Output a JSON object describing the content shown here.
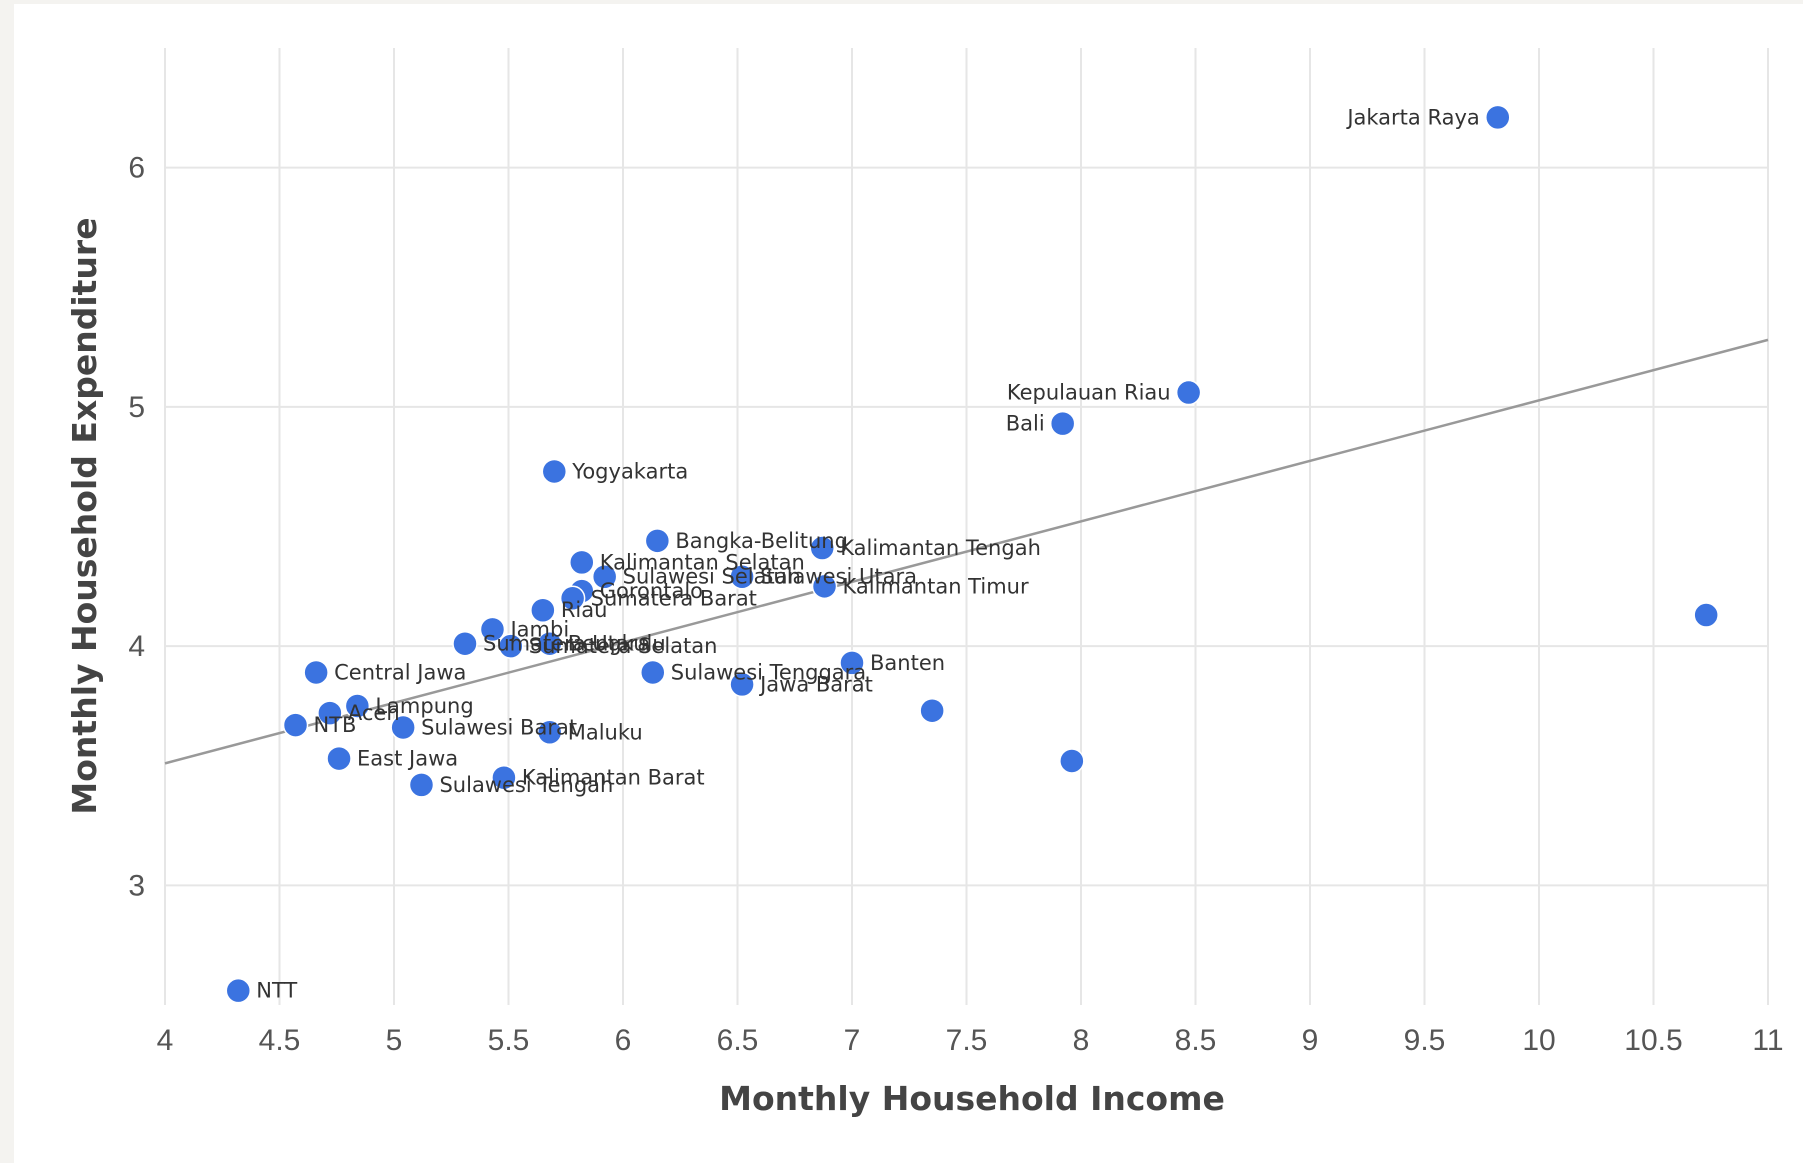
{
  "chart_data": {
    "type": "scatter",
    "title": "",
    "xlabel": "Monthly Household Income",
    "ylabel": "Monthly Household Expenditure",
    "xlim": [
      4,
      11
    ],
    "ylim": [
      2.5,
      6.5
    ],
    "x_ticks": [
      4,
      4.5,
      5,
      5.5,
      6,
      6.5,
      7,
      7.5,
      8,
      8.5,
      9,
      9.5,
      10,
      10.5,
      11
    ],
    "x_tick_labels": [
      "4",
      "4.5",
      "5",
      "5.5",
      "6",
      "6.5",
      "7",
      "7.5",
      "8",
      "8.5",
      "9",
      "9.5",
      "10",
      "10.5",
      "11"
    ],
    "y_ticks": [
      3,
      4,
      5,
      6
    ],
    "y_tick_labels": [
      "3",
      "4",
      "5",
      "6"
    ],
    "grid": true,
    "point_color": "#3b73e0",
    "trendline_color": "#999999",
    "trendline": {
      "x": [
        4,
        11
      ],
      "y": [
        3.51,
        5.28
      ]
    },
    "points": [
      {
        "label": "Jakarta Raya",
        "x": 9.82,
        "y": 6.21
      },
      {
        "label": "Kepulauan Riau",
        "x": 8.47,
        "y": 5.06
      },
      {
        "label": "Bali",
        "x": 7.92,
        "y": 4.93
      },
      {
        "label": "Yogyakarta",
        "x": 5.7,
        "y": 4.73
      },
      {
        "label": "Bangka-Belitung",
        "x": 6.15,
        "y": 4.44
      },
      {
        "label": "Kalimantan Tengah",
        "x": 6.87,
        "y": 4.41
      },
      {
        "label": "Kalimantan Selatan",
        "x": 5.82,
        "y": 4.35
      },
      {
        "label": "Sulawesi Selatan",
        "x": 5.92,
        "y": 4.29
      },
      {
        "label": "Sulawesi Utara",
        "x": 6.52,
        "y": 4.29
      },
      {
        "label": "Kalimantan Timur",
        "x": 6.88,
        "y": 4.25
      },
      {
        "label": "Gorontalo",
        "x": 5.82,
        "y": 4.23
      },
      {
        "label": "Sumatera Barat",
        "x": 5.78,
        "y": 4.2
      },
      {
        "label": "Riau",
        "x": 5.65,
        "y": 4.15
      },
      {
        "label": "Jambi",
        "x": 5.43,
        "y": 4.07
      },
      {
        "label": "Sumatera Utara",
        "x": 5.31,
        "y": 4.01
      },
      {
        "label": "Sumatera Selatan",
        "x": 5.51,
        "y": 4.0
      },
      {
        "label": "Bengkulu",
        "x": 5.68,
        "y": 4.01
      },
      {
        "label": "Banten",
        "x": 7.0,
        "y": 3.93
      },
      {
        "label": "Sulawesi Tenggara",
        "x": 6.13,
        "y": 3.89
      },
      {
        "label": "Central Jawa",
        "x": 4.66,
        "y": 3.89
      },
      {
        "label": "Jawa Barat",
        "x": 6.52,
        "y": 3.84
      },
      {
        "label": "Lampung",
        "x": 4.84,
        "y": 3.75
      },
      {
        "label": "Aceh",
        "x": 4.72,
        "y": 3.72
      },
      {
        "label": "",
        "x": 7.35,
        "y": 3.73
      },
      {
        "label": "NTB",
        "x": 4.57,
        "y": 3.67
      },
      {
        "label": "Sulawesi Barat",
        "x": 5.04,
        "y": 3.66
      },
      {
        "label": "Maluku",
        "x": 5.68,
        "y": 3.64
      },
      {
        "label": "East Jawa",
        "x": 4.76,
        "y": 3.53
      },
      {
        "label": "",
        "x": 7.96,
        "y": 3.52
      },
      {
        "label": "Kalimantan Barat",
        "x": 5.48,
        "y": 3.45
      },
      {
        "label": "Sulawesi Tengah",
        "x": 5.12,
        "y": 3.42
      },
      {
        "label": "NTT",
        "x": 4.32,
        "y": 2.56
      },
      {
        "label": "",
        "x": 10.73,
        "y": 4.13
      }
    ]
  }
}
